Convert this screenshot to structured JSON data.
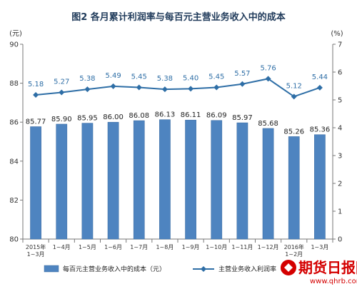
{
  "chart_data": {
    "type": "bar+line",
    "title": "图2  各月累计利润率与每百元主营业务收入中的成本",
    "left_unit": "(元)",
    "right_unit": "(%)",
    "categories": [
      [
        "2015年",
        "1~3月"
      ],
      [
        "1~4月"
      ],
      [
        "1~5月"
      ],
      [
        "1~6月"
      ],
      [
        "1~7月"
      ],
      [
        "1~8月"
      ],
      [
        "1~9月"
      ],
      [
        "1~10月"
      ],
      [
        "1~11月"
      ],
      [
        "1~12月"
      ],
      [
        "2016年",
        "1~2月"
      ],
      [
        "1~3月"
      ]
    ],
    "left_axis": {
      "min": 80,
      "max": 90,
      "ticks": [
        "80",
        "82",
        "84",
        "86",
        "88",
        "90"
      ]
    },
    "right_axis": {
      "min": 0,
      "max": 7,
      "ticks": [
        "0",
        "1",
        "2",
        "3",
        "4",
        "5",
        "6",
        "7"
      ]
    },
    "series": [
      {
        "name": "每百元主营业务收入中的成本（元）",
        "type": "bar",
        "axis": "left",
        "values": [
          85.77,
          85.9,
          85.95,
          86.0,
          86.08,
          86.13,
          86.11,
          86.09,
          85.97,
          85.68,
          85.26,
          85.36
        ],
        "labels": [
          "85.77",
          "85.90",
          "85.95",
          "86.00",
          "86.08",
          "86.13",
          "86.11",
          "86.09",
          "85.97",
          "85.68",
          "85.26",
          "85.36"
        ],
        "color": "#4e84c0"
      },
      {
        "name": "主营业务收入利润率（%）",
        "type": "line",
        "axis": "right",
        "values": [
          5.18,
          5.27,
          5.38,
          5.49,
          5.45,
          5.38,
          5.4,
          5.45,
          5.57,
          5.76,
          5.12,
          5.44
        ],
        "labels": [
          "5.18",
          "5.27",
          "5.38",
          "5.49",
          "5.45",
          "5.38",
          "5.40",
          "5.45",
          "5.57",
          "5.76",
          "5.12",
          "5.44"
        ],
        "color": "#2e6ea6"
      }
    ],
    "grid": false,
    "legend": "bottom"
  },
  "watermark": {
    "text": "期货日报网",
    "url": "www.qhrb.com.cn",
    "color": "#d40000"
  }
}
